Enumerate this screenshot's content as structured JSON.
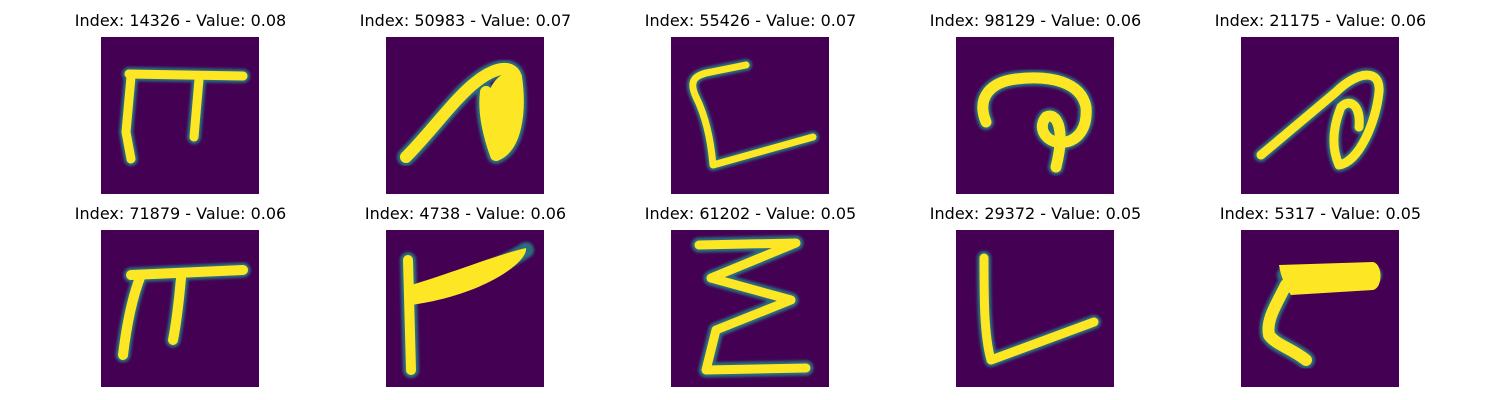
{
  "figure": {
    "colormap": "viridis",
    "background_color": "#440154",
    "stroke_color": "#fde725",
    "panels": [
      {
        "title": "Index: 14326 - Value: 0.08",
        "glyph": "pi-shape"
      },
      {
        "title": "Index: 50983 - Value: 0.07",
        "glyph": "hook-shape"
      },
      {
        "title": "Index: 55426 - Value: 0.07",
        "glyph": "L-shape-curved"
      },
      {
        "title": "Index: 98129 - Value: 0.06",
        "glyph": "curl-shape"
      },
      {
        "title": "Index: 21175 - Value: 0.06",
        "glyph": "loop-hook-shape"
      },
      {
        "title": "Index: 71879 - Value: 0.06",
        "glyph": "pi-shape-variant"
      },
      {
        "title": "Index: 4738 - Value: 0.06",
        "glyph": "F-shape"
      },
      {
        "title": "Index: 61202 - Value: 0.05",
        "glyph": "zigzag-Z-shape"
      },
      {
        "title": "Index: 29372 - Value: 0.05",
        "glyph": "L-shape"
      },
      {
        "title": "Index: 5317 - Value: 0.05",
        "glyph": "F-curve-shape"
      }
    ]
  }
}
